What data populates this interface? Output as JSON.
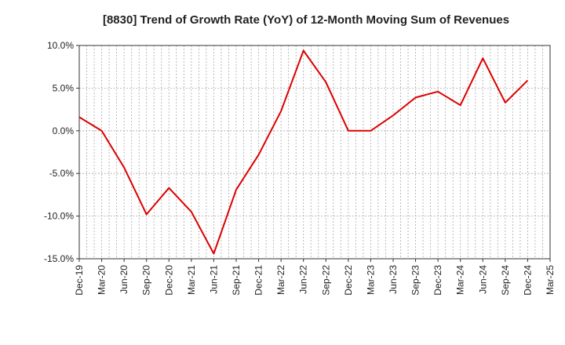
{
  "chart_data": {
    "type": "line",
    "title": "[8830]  Trend of Growth Rate (YoY) of 12-Month Moving Sum of Revenues",
    "xlabel": "",
    "ylabel": "",
    "ylim": [
      -15,
      10
    ],
    "yticks": [
      10,
      5,
      0,
      -5,
      -10,
      -15
    ],
    "ytick_labels": [
      "10.0%",
      "5.0%",
      "0.0%",
      "-5.0%",
      "-10.0%",
      "-15.0%"
    ],
    "x_tick_labels": [
      "Dec-19",
      "Mar-20",
      "Jun-20",
      "Sep-20",
      "Dec-20",
      "Mar-21",
      "Jun-21",
      "Sep-21",
      "Dec-21",
      "Mar-22",
      "Jun-22",
      "Sep-22",
      "Dec-22",
      "Mar-23",
      "Jun-23",
      "Sep-23",
      "Dec-23",
      "Mar-24",
      "Jun-24",
      "Sep-24",
      "Dec-24",
      "Mar-25"
    ],
    "grid": true,
    "series": [
      {
        "color": "#dd0000",
        "x": [
          "Dec-19",
          "Mar-20",
          "Jun-20",
          "Sep-20",
          "Dec-20",
          "Mar-21",
          "Jun-21",
          "Sep-21",
          "Dec-21",
          "Mar-22",
          "Jun-22",
          "Sep-22",
          "Dec-22",
          "Mar-23",
          "Jun-23",
          "Sep-23",
          "Dec-23",
          "Mar-24",
          "Jun-24",
          "Sep-24",
          "Dec-24"
        ],
        "values": [
          1.6,
          0.0,
          -4.3,
          -9.8,
          -6.7,
          -9.5,
          -14.4,
          -6.9,
          -2.8,
          2.3,
          9.4,
          5.7,
          0.0,
          0.0,
          1.8,
          3.9,
          4.6,
          3.0,
          8.5,
          3.3,
          5.9
        ]
      }
    ]
  }
}
